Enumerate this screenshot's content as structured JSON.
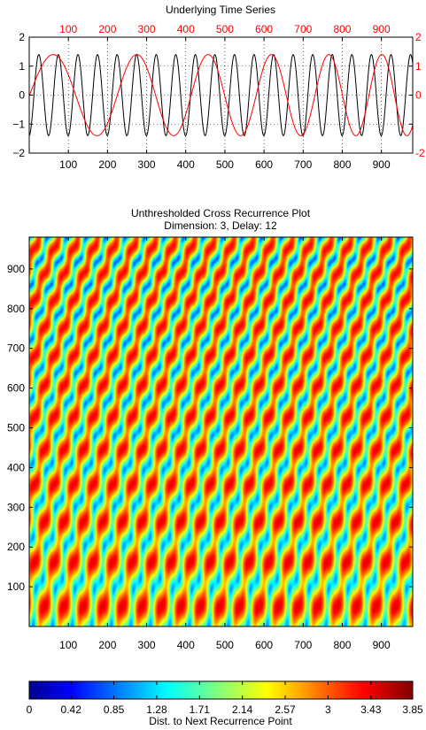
{
  "chart_data": [
    {
      "type": "line",
      "title": "Underlying Time Series",
      "xlabel": "",
      "ylabel": "",
      "xlim": [
        0,
        980
      ],
      "ylim": [
        -2,
        2
      ],
      "grid": true,
      "x_ticks_bottom": [
        "100",
        "200",
        "300",
        "400",
        "500",
        "600",
        "700",
        "800",
        "900"
      ],
      "x_ticks_top": [
        "100",
        "200",
        "300",
        "400",
        "500",
        "600",
        "700",
        "800",
        "900"
      ],
      "y_ticks_left": [
        "2",
        "1",
        "0",
        "−1",
        "−2"
      ],
      "y_ticks_right": [
        "2",
        "1",
        "0",
        "-2"
      ],
      "series": [
        {
          "color": "#000000",
          "amplitude": 1.4,
          "period": 50,
          "description_note": ""
        },
        {
          "color": "#ff0000",
          "amplitude": 1.4,
          "chirp": true
        }
      ]
    },
    {
      "type": "heatmap",
      "title": "Unthresholded Cross Recurrence Plot",
      "subtitle": "Dimension: 3,  Delay: 12",
      "xlim": [
        0,
        980
      ],
      "ylim": [
        0,
        980
      ],
      "x_ticks": [
        "100",
        "200",
        "300",
        "400",
        "500",
        "600",
        "700",
        "800",
        "900"
      ],
      "y_ticks": [
        "900",
        "800",
        "700",
        "600",
        "500",
        "400",
        "300",
        "200",
        "100"
      ],
      "colormap": "jet",
      "colorbar": {
        "label": "Dist. to Next Recurrence Point",
        "min": 0,
        "max": 3.85,
        "ticks": [
          "0",
          "0.42",
          "0.85",
          "1.28",
          "1.71",
          "2.14",
          "2.57",
          "3",
          "3.43",
          "3.85"
        ]
      }
    }
  ]
}
